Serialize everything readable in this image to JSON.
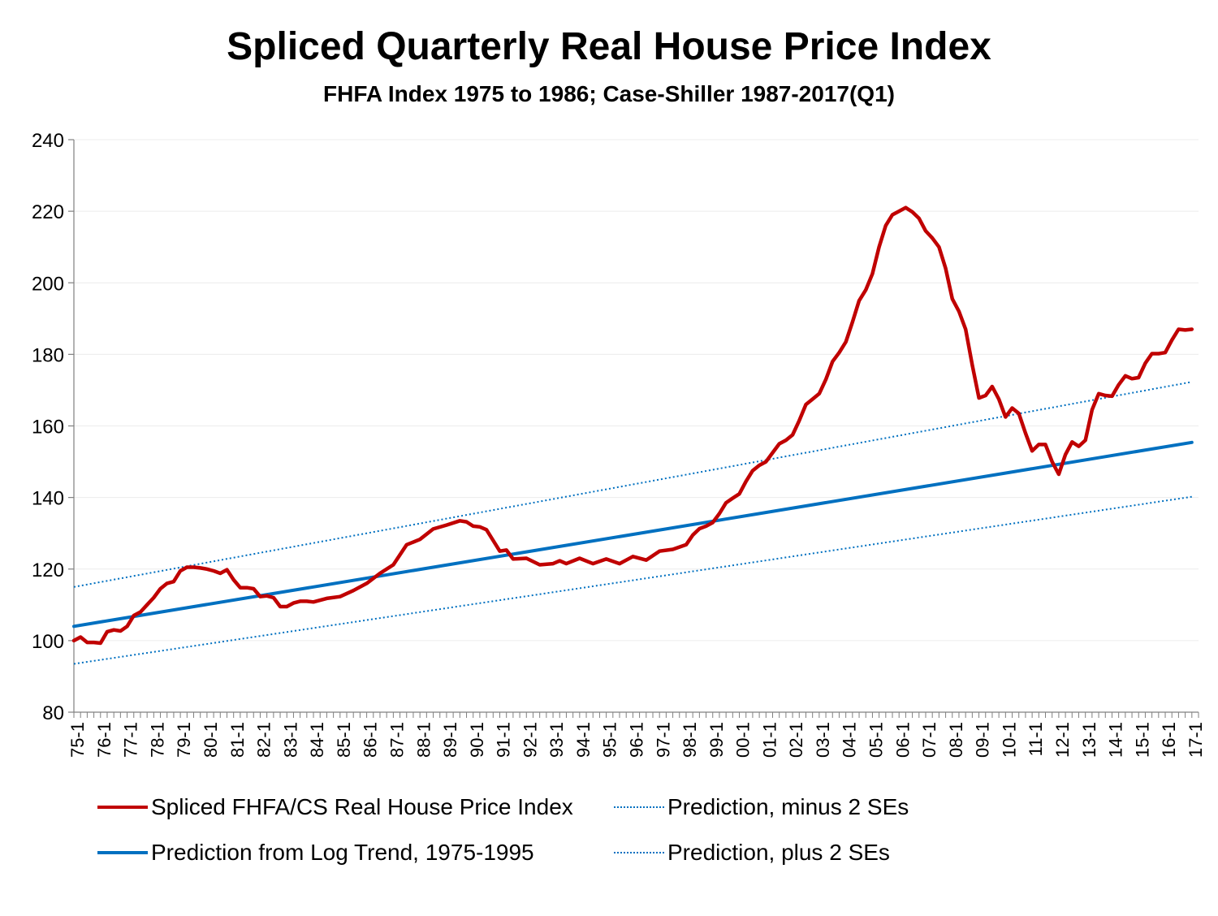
{
  "chart_data": {
    "type": "line",
    "title": "Spliced Quarterly Real House Price Index",
    "subtitle": "FHFA Index 1975 to 1986; Case-Shiller 1987-2017(Q1)",
    "xlabel": "",
    "ylabel": "",
    "ylim": [
      80,
      240
    ],
    "yticks": [
      80,
      100,
      120,
      140,
      160,
      180,
      200,
      220,
      240
    ],
    "xlim": [
      1975.0,
      2017.25
    ],
    "xtick_labels": [
      "75-1",
      "76-1",
      "77-1",
      "78-1",
      "79-1",
      "80-1",
      "81-1",
      "82-1",
      "83-1",
      "84-1",
      "85-1",
      "86-1",
      "87-1",
      "88-1",
      "89-1",
      "90-1",
      "91-1",
      "92-1",
      "93-1",
      "94-1",
      "95-1",
      "96-1",
      "97-1",
      "98-1",
      "99-1",
      "00-1",
      "01-1",
      "02-1",
      "03-1",
      "04-1",
      "05-1",
      "06-1",
      "07-1",
      "08-1",
      "09-1",
      "10-1",
      "11-1",
      "12-1",
      "13-1",
      "14-1",
      "15-1",
      "16-1",
      "17-1"
    ],
    "xtick_years": [
      1975,
      1976,
      1977,
      1978,
      1979,
      1980,
      1981,
      1982,
      1983,
      1984,
      1985,
      1986,
      1987,
      1988,
      1989,
      1990,
      1991,
      1992,
      1993,
      1994,
      1995,
      1996,
      1997,
      1998,
      1999,
      2000,
      2001,
      2002,
      2003,
      2004,
      2005,
      2006,
      2007,
      2008,
      2009,
      2010,
      2011,
      2012,
      2013,
      2014,
      2015,
      2016,
      2017
    ],
    "grid": "horizontal",
    "legend_placement": "bottom",
    "series": [
      {
        "name": "Spliced FHFA/CS Real House Price Index",
        "color": "#c00000",
        "style": "solid",
        "x": [
          1975.0,
          1975.25,
          1975.5,
          1975.75,
          1976.0,
          1976.25,
          1976.5,
          1976.75,
          1977.0,
          1977.25,
          1977.5,
          1977.75,
          1978.0,
          1978.25,
          1978.5,
          1978.75,
          1979.0,
          1979.25,
          1979.5,
          1979.75,
          1980.0,
          1980.25,
          1980.5,
          1980.75,
          1981.0,
          1981.25,
          1981.5,
          1981.75,
          1982.0,
          1982.25,
          1982.5,
          1982.75,
          1983.0,
          1983.25,
          1983.5,
          1983.75,
          1984.0,
          1984.5,
          1985.0,
          1985.5,
          1986.0,
          1986.5,
          1987.0,
          1987.5,
          1988.0,
          1988.5,
          1989.0,
          1989.5,
          1989.75,
          1990.0,
          1990.25,
          1990.5,
          1990.75,
          1991.0,
          1991.25,
          1991.5,
          1992.0,
          1992.5,
          1993.0,
          1993.25,
          1993.5,
          1994.0,
          1994.5,
          1995.0,
          1995.5,
          1996.0,
          1996.5,
          1997.0,
          1997.5,
          1998.0,
          1998.25,
          1998.5,
          1998.75,
          1999.0,
          1999.25,
          1999.5,
          1999.75,
          2000.0,
          2000.25,
          2000.5,
          2000.75,
          2001.0,
          2001.25,
          2001.5,
          2001.75,
          2002.0,
          2002.25,
          2002.5,
          2002.75,
          2003.0,
          2003.25,
          2003.5,
          2003.75,
          2004.0,
          2004.25,
          2004.5,
          2004.75,
          2005.0,
          2005.25,
          2005.5,
          2005.75,
          2006.0,
          2006.25,
          2006.5,
          2006.75,
          2007.0,
          2007.25,
          2007.5,
          2007.75,
          2008.0,
          2008.25,
          2008.5,
          2008.75,
          2009.0,
          2009.25,
          2009.5,
          2009.75,
          2010.0,
          2010.25,
          2010.5,
          2010.75,
          2011.0,
          2011.25,
          2011.5,
          2011.75,
          2012.0,
          2012.25,
          2012.5,
          2012.75,
          2013.0,
          2013.25,
          2013.5,
          2013.75,
          2014.0,
          2014.25,
          2014.5,
          2014.75,
          2015.0,
          2015.25,
          2015.5,
          2015.75,
          2016.0,
          2016.25,
          2016.5,
          2016.75,
          2017.0
        ],
        "y": [
          100,
          101,
          99.5,
          99.5,
          99.3,
          102.5,
          103,
          102.7,
          104,
          107,
          108,
          110,
          112,
          114.5,
          116,
          116.5,
          119.5,
          120.5,
          120.5,
          120.3,
          120,
          119.5,
          118.8,
          119.8,
          117,
          114.8,
          114.8,
          114.5,
          112.3,
          112.5,
          112,
          109.5,
          109.5,
          110.5,
          111,
          111,
          110.8,
          111.8,
          112.3,
          114,
          116,
          118.8,
          121.2,
          126.8,
          128.3,
          131.2,
          132.3,
          133.5,
          133.2,
          132,
          131.8,
          131,
          128,
          125,
          125.3,
          122.8,
          123,
          121.2,
          121.5,
          122.3,
          121.5,
          123,
          121.5,
          122.8,
          121.5,
          123.5,
          122.5,
          125,
          125.5,
          126.8,
          129.5,
          131.3,
          132,
          133,
          135.5,
          138.5,
          139.8,
          141,
          144.5,
          147.5,
          149,
          150,
          152.5,
          155,
          156,
          157.5,
          161.5,
          166,
          167.5,
          169,
          173,
          178,
          180.5,
          183.5,
          189,
          195,
          198,
          202.5,
          210,
          216,
          219,
          220,
          221,
          219.8,
          218,
          214.5,
          212.5,
          210,
          204,
          195.5,
          192,
          187,
          177,
          167.8,
          168.5,
          171,
          167.5,
          162.5,
          165,
          163.5,
          158,
          153,
          154.8,
          154.8,
          150,
          146.5,
          152,
          155.5,
          154.3,
          156,
          164.5,
          169,
          168.5,
          168.3,
          171.5,
          174,
          173.2,
          173.5,
          177.5,
          180.2,
          180.2,
          180.5,
          184,
          187,
          186.8,
          187
        ]
      },
      {
        "name": "Prediction from Log Trend, 1975-1995",
        "color": "#0070c0",
        "style": "solid",
        "x": [
          1975.0,
          2017.0
        ],
        "y": [
          104,
          155.4
        ]
      },
      {
        "name": "Prediction, minus 2 SEs",
        "color": "#0070c0",
        "style": "dotted",
        "x": [
          1975.0,
          2017.0
        ],
        "y": [
          93.5,
          140.2
        ]
      },
      {
        "name": "Prediction, plus 2 SEs",
        "color": "#0070c0",
        "style": "dotted",
        "x": [
          1975.0,
          2017.0
        ],
        "y": [
          115,
          172.3
        ]
      }
    ]
  }
}
